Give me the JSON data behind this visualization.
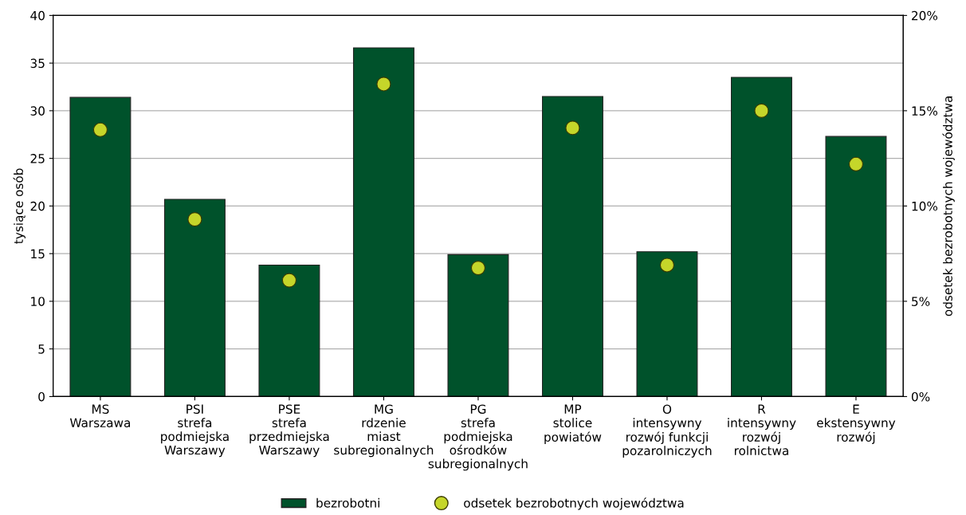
{
  "chart_data": {
    "type": "bar",
    "ylabel": "tysiące osób",
    "y2label": "odsetek bezrobotnych województwa",
    "categories": [
      "MS\nWarszawa",
      "PSI\nstrefa\npodmiejska\nWarszawy",
      "PSE\nstrefa\nprzedmiejska\nWarszawy",
      "MG\nrdzenie\nmiast\nsubregionalnych",
      "PG\nstrefa\npodmiejska\nośrodków\nsubregionalnych",
      "MP\nstolice\npowiatów",
      "O\nintensywny\nrozwój funkcji\npozarolniczych",
      "R\nintensywny\nrozwój\nrolnictwa",
      "E\nekstensywny\nrozwój"
    ],
    "series": [
      {
        "name": "bezrobotni",
        "color": "#00522b",
        "values": [
          31.4,
          20.7,
          13.8,
          36.6,
          14.9,
          31.5,
          15.2,
          33.5,
          27.3
        ]
      },
      {
        "name": "odsetek bezrobotnych województwa",
        "type": "scatter",
        "axis": "y2",
        "color": "#c5d62a",
        "values": [
          14.0,
          9.3,
          6.1,
          16.4,
          6.75,
          14.1,
          6.9,
          15.0,
          12.2
        ]
      }
    ],
    "ylim": [
      0,
      40
    ],
    "yticks": [
      0,
      5,
      10,
      15,
      20,
      25,
      30,
      35,
      40
    ],
    "y2lim": [
      0,
      20
    ],
    "y2ticks": [
      {
        "value": 0,
        "label": "0%"
      },
      {
        "value": 5,
        "label": "5%"
      },
      {
        "value": 10,
        "label": "10%"
      },
      {
        "value": 15,
        "label": "15%"
      },
      {
        "value": 20,
        "label": "20%"
      }
    ],
    "grid": "y",
    "legend": "bottom",
    "marker": "circle"
  }
}
